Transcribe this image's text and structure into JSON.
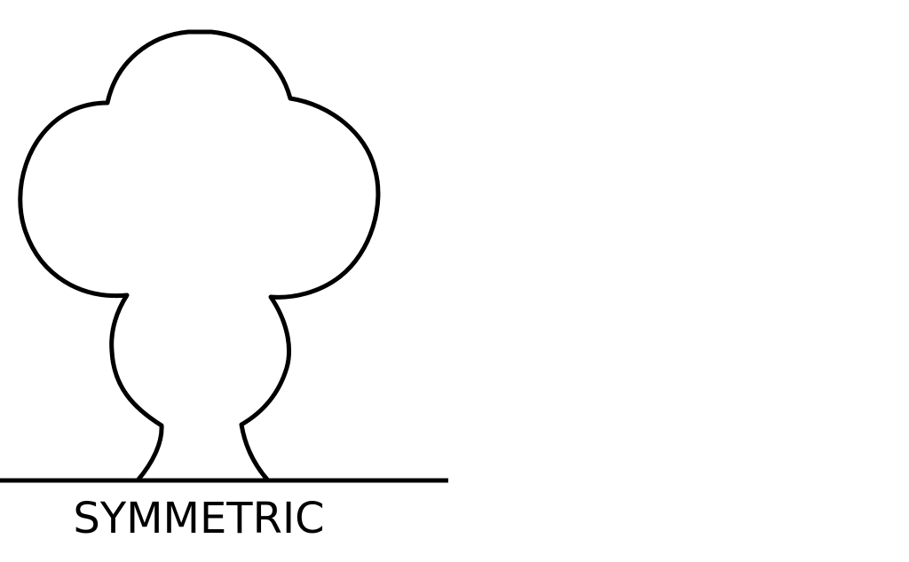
{
  "figure": {
    "caption": "SYMMETRIC",
    "colors": {
      "stroke": "#000000",
      "background": "#ffffff"
    }
  }
}
